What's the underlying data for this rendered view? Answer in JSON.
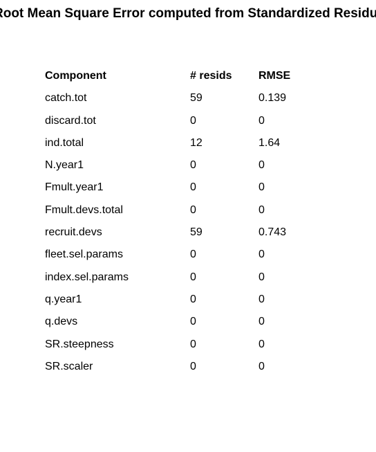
{
  "title": "Root Mean Square Error computed from Standardized Residuals",
  "table": {
    "headers": [
      "Component",
      "# resids",
      "RMSE"
    ],
    "rows": [
      [
        "catch.tot",
        "59",
        "0.139"
      ],
      [
        "discard.tot",
        "0",
        "0"
      ],
      [
        "ind.total",
        "12",
        "1.64"
      ],
      [
        "N.year1",
        "0",
        "0"
      ],
      [
        "Fmult.year1",
        "0",
        "0"
      ],
      [
        "Fmult.devs.total",
        "0",
        "0"
      ],
      [
        "recruit.devs",
        "59",
        "0.743"
      ],
      [
        "fleet.sel.params",
        "0",
        "0"
      ],
      [
        "index.sel.params",
        "0",
        "0"
      ],
      [
        "q.year1",
        "0",
        "0"
      ],
      [
        "q.devs",
        "0",
        "0"
      ],
      [
        "SR.steepness",
        "0",
        "0"
      ],
      [
        "SR.scaler",
        "0",
        "0"
      ]
    ]
  }
}
